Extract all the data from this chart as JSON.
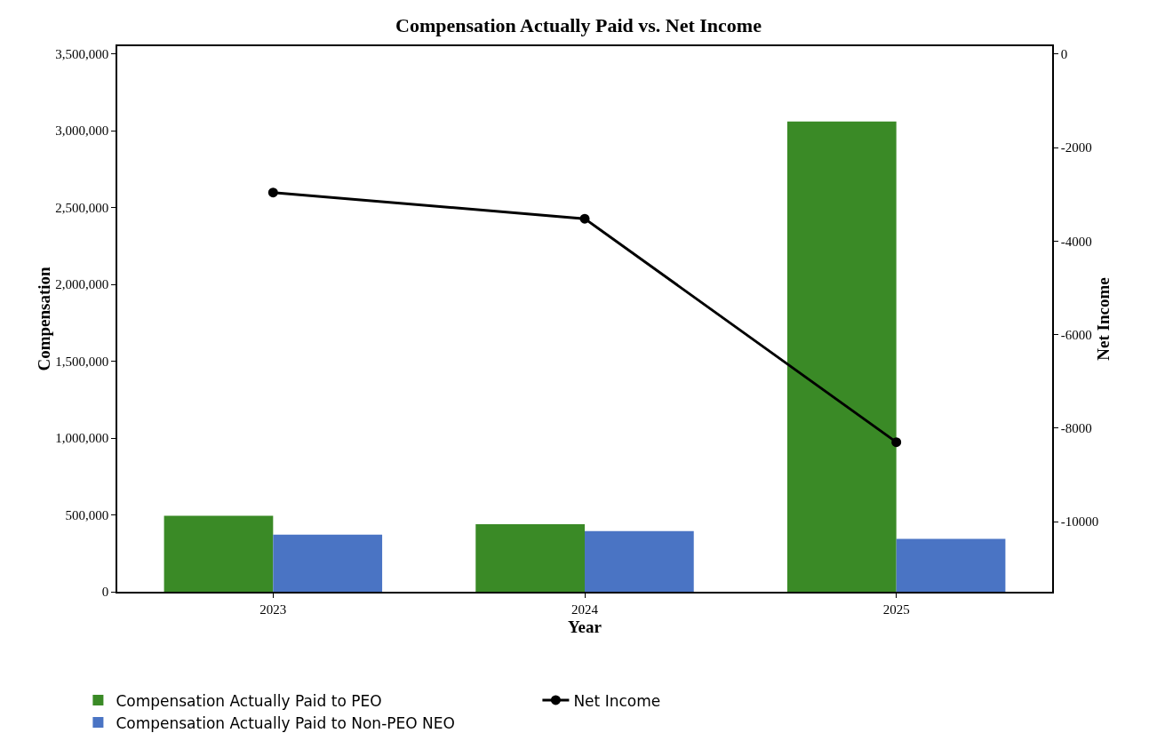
{
  "chart_data": {
    "type": "bar",
    "title": "Compensation Actually Paid vs. Net Income",
    "xlabel": "Year",
    "ylabel": "Compensation",
    "y2label": "Net Income",
    "categories": [
      "2023",
      "2024",
      "2025"
    ],
    "series": [
      {
        "name": "Compensation Actually Paid to PEO",
        "color": "#3a8a26",
        "values": [
          494000,
          439000,
          3060000
        ]
      },
      {
        "name": "Compensation Actually Paid to Non-PEO NEO",
        "color": "#4a74c4",
        "values": [
          372000,
          394000,
          344000
        ]
      },
      {
        "name": "Net Income",
        "type": "line",
        "axis": "y2",
        "color": "#000000",
        "values": [
          -2960,
          -3520,
          -8300
        ]
      }
    ],
    "ylim": [
      0,
      3550000
    ],
    "yticks": [
      {
        "value": 0,
        "label": "0"
      },
      {
        "value": 500000,
        "label": "500,000"
      },
      {
        "value": 1000000,
        "label": "1,000,000"
      },
      {
        "value": 1500000,
        "label": "1,500,000"
      },
      {
        "value": 2000000,
        "label": "2,000,000"
      },
      {
        "value": 2500000,
        "label": "2,500,000"
      },
      {
        "value": 3000000,
        "label": "3,000,000"
      },
      {
        "value": 3500000,
        "label": "3,500,000"
      }
    ],
    "y2lim": [
      -11500,
      170
    ],
    "y2ticks": [
      -10000,
      -8000,
      -6000,
      -4000,
      -2000,
      0
    ],
    "marker": "circle",
    "line_style": "solid",
    "grid": false,
    "legend": "bottom"
  }
}
